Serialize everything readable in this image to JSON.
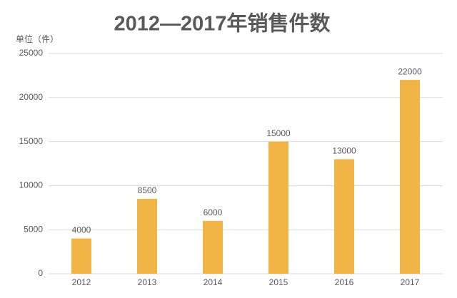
{
  "chart_data": {
    "type": "bar",
    "title": "2012—2017年销售件数",
    "y_label": "单位（件）",
    "categories": [
      "2012",
      "2013",
      "2014",
      "2015",
      "2016",
      "2017"
    ],
    "values": [
      4000,
      8500,
      6000,
      15000,
      13000,
      22000
    ],
    "color": "#f2b545",
    "ylim": [
      0,
      25000
    ],
    "yticks": [
      0,
      5000,
      10000,
      15000,
      20000,
      25000
    ],
    "grid": true,
    "data_labels": true
  }
}
